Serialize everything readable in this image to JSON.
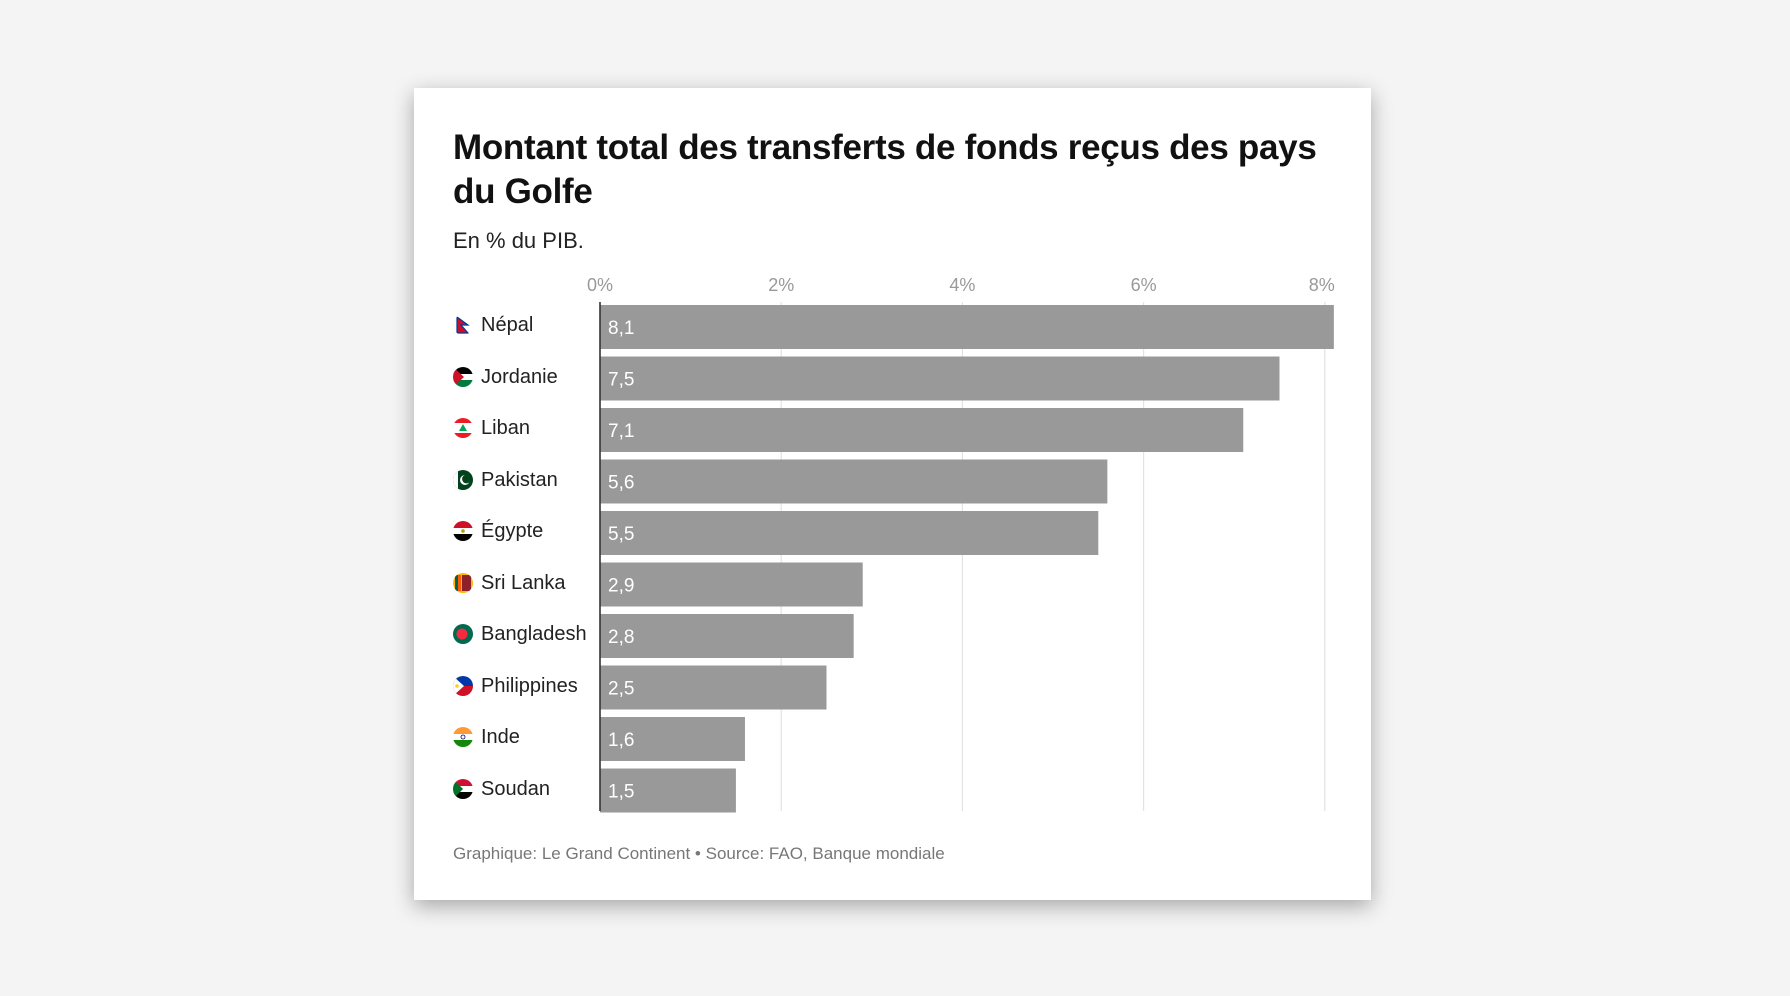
{
  "title": "Montant total des transferts de fonds reçus des pays du Golfe",
  "subtitle": "En % du PIB.",
  "footer": "Graphique: Le Grand Continent • Source: FAO, Banque mondiale",
  "colors": {
    "bar": "#999999",
    "grid": "#e3e3e3",
    "axis": "#333333",
    "value_label": "#ffffff",
    "tick_label": "#999999"
  },
  "chart_data": {
    "type": "bar",
    "orientation": "horizontal",
    "title": "Montant total des transferts de fonds reçus des pays du Golfe",
    "subtitle": "En % du PIB.",
    "categories": [
      "Népal",
      "Jordanie",
      "Liban",
      "Pakistan",
      "Égypte",
      "Sri Lanka",
      "Bangladesh",
      "Philippines",
      "Inde",
      "Soudan"
    ],
    "values": [
      8.1,
      7.5,
      7.1,
      5.6,
      5.5,
      2.9,
      2.8,
      2.5,
      1.6,
      1.5
    ],
    "value_labels": [
      "8,1",
      "7,5",
      "7,1",
      "5,6",
      "5,5",
      "2,9",
      "2,8",
      "2,5",
      "1,6",
      "1,5"
    ],
    "flag_icons": [
      "nepal-flag-icon",
      "jordan-flag-icon",
      "lebanon-flag-icon",
      "pakistan-flag-icon",
      "egypt-flag-icon",
      "sri-lanka-flag-icon",
      "bangladesh-flag-icon",
      "philippines-flag-icon",
      "india-flag-icon",
      "sudan-flag-icon"
    ],
    "x_ticks": [
      0,
      2,
      4,
      6,
      8
    ],
    "x_tick_labels": [
      "0%",
      "2%",
      "4%",
      "6%",
      "8%"
    ],
    "xlim": [
      0,
      8.1
    ],
    "xlabel": "",
    "ylabel": "",
    "grid": true,
    "legend": "none"
  }
}
